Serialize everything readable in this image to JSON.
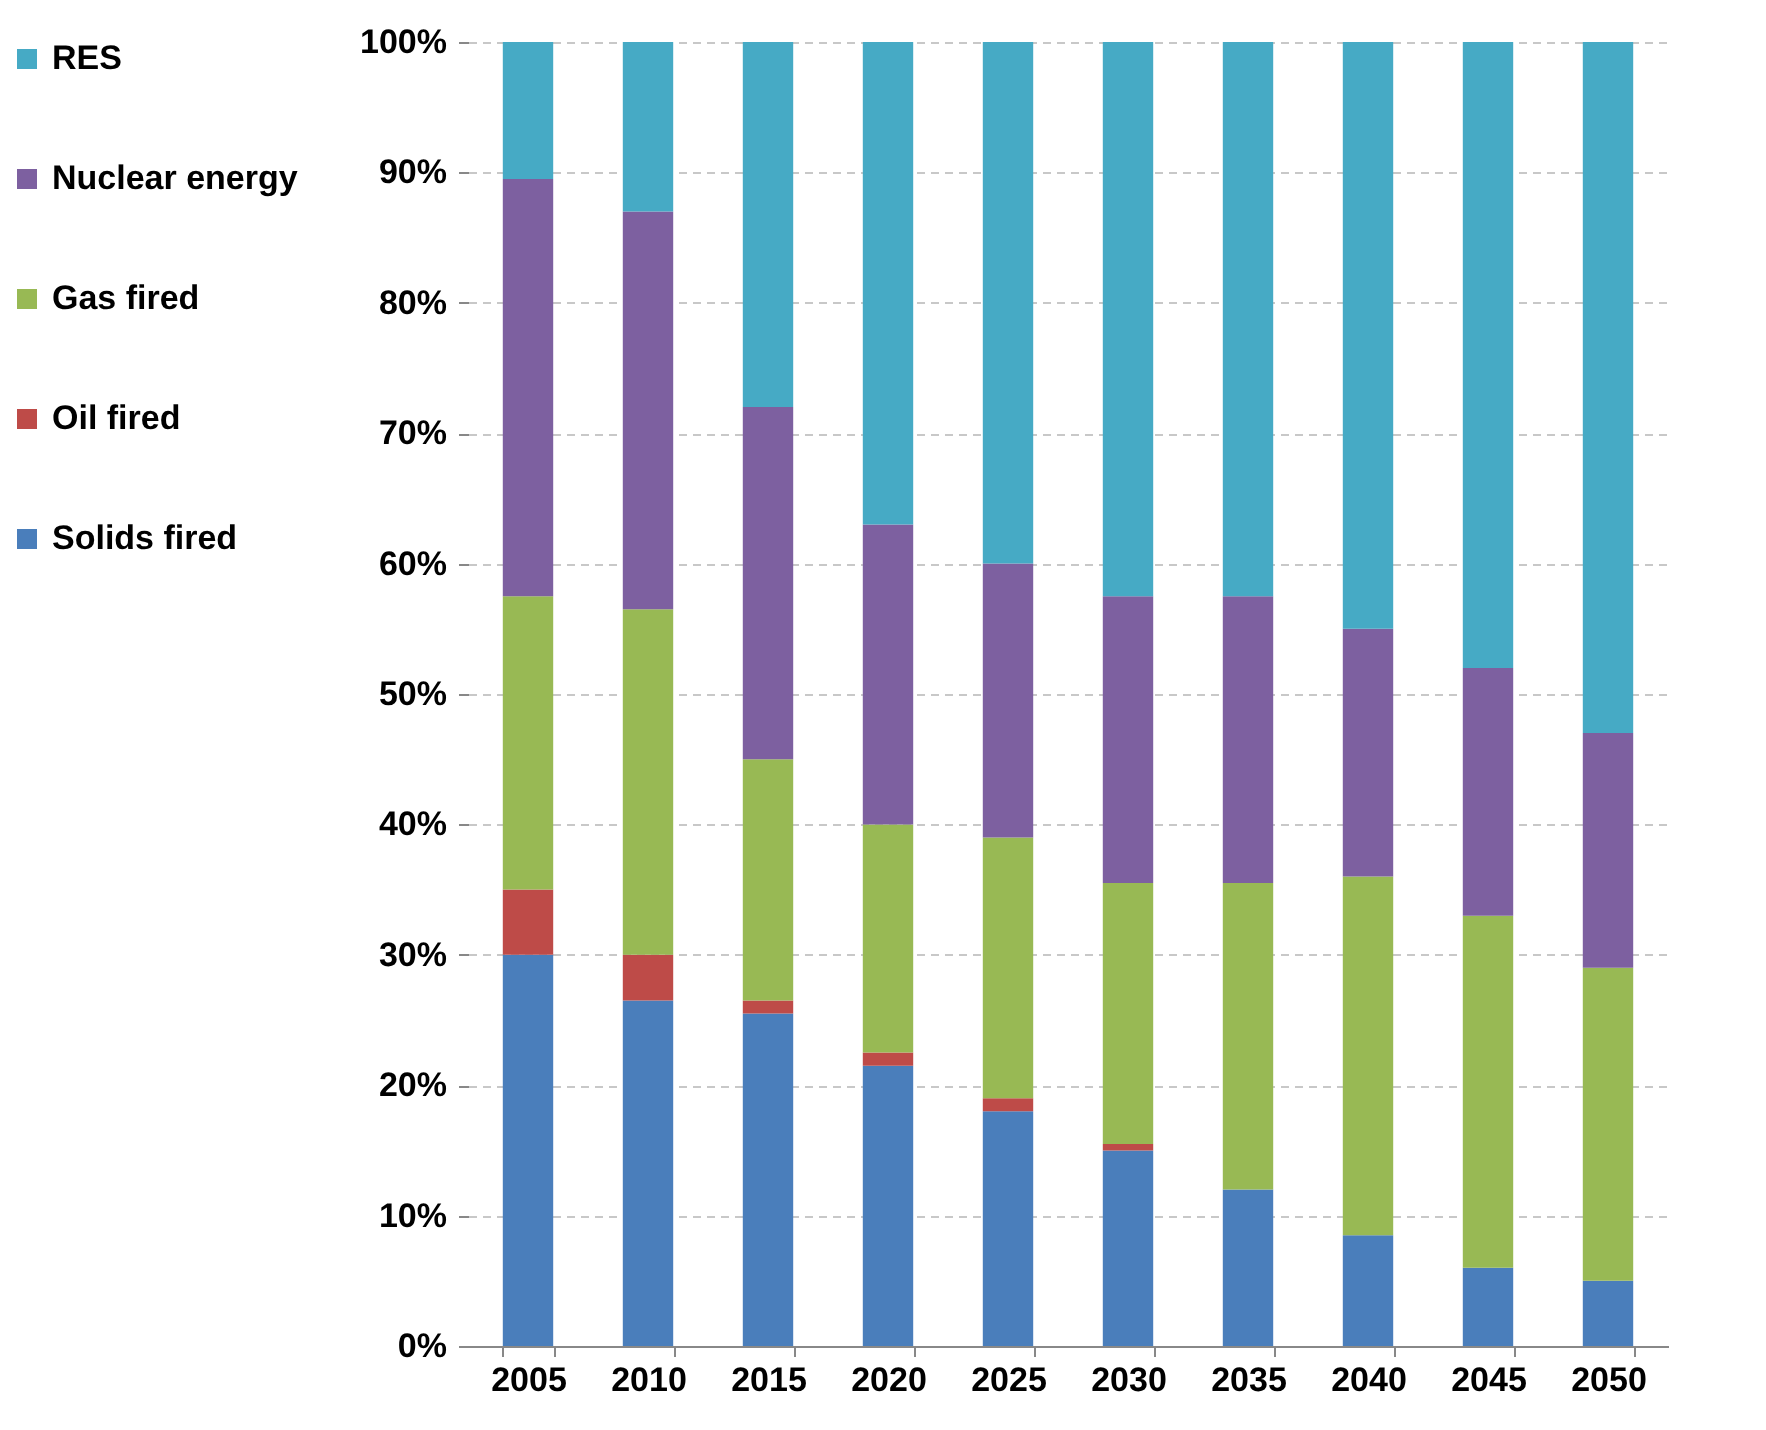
{
  "chart_data": {
    "type": "bar",
    "stacked": true,
    "categories": [
      "2005",
      "2010",
      "2015",
      "2020",
      "2025",
      "2030",
      "2035",
      "2040",
      "2045",
      "2050"
    ],
    "series": [
      {
        "name": "Solids fired",
        "color": "#4a7ebb",
        "values": [
          30,
          26.5,
          25.5,
          21.5,
          18,
          15,
          12,
          8.5,
          6,
          5
        ]
      },
      {
        "name": "Oil fired",
        "color": "#be4b48",
        "values": [
          5,
          3.5,
          1,
          1,
          1,
          0.5,
          0,
          0,
          0,
          0
        ]
      },
      {
        "name": "Gas fired",
        "color": "#98b954",
        "values": [
          22.5,
          26.5,
          18.5,
          17.5,
          20,
          20,
          23.5,
          27.5,
          27,
          24
        ]
      },
      {
        "name": "Nuclear energy",
        "color": "#7d60a0",
        "values": [
          32,
          30.5,
          27,
          23,
          21,
          22,
          22,
          19,
          19,
          18
        ]
      },
      {
        "name": "RES",
        "color": "#46aac5",
        "values": [
          10.5,
          13,
          28,
          37,
          40,
          42.5,
          42.5,
          45,
          48,
          53
        ]
      }
    ],
    "ylim": [
      0,
      100
    ],
    "yticks": [
      {
        "value": 0,
        "label": "0%"
      },
      {
        "value": 10,
        "label": "10%"
      },
      {
        "value": 20,
        "label": "20%"
      },
      {
        "value": 30,
        "label": "30%"
      },
      {
        "value": 40,
        "label": "40%"
      },
      {
        "value": 50,
        "label": "50%"
      },
      {
        "value": 60,
        "label": "60%"
      },
      {
        "value": 70,
        "label": "70%"
      },
      {
        "value": 80,
        "label": "80%"
      },
      {
        "value": 90,
        "label": "90%"
      },
      {
        "value": 100,
        "label": "100%"
      }
    ],
    "grid": "y",
    "legend": "left"
  }
}
